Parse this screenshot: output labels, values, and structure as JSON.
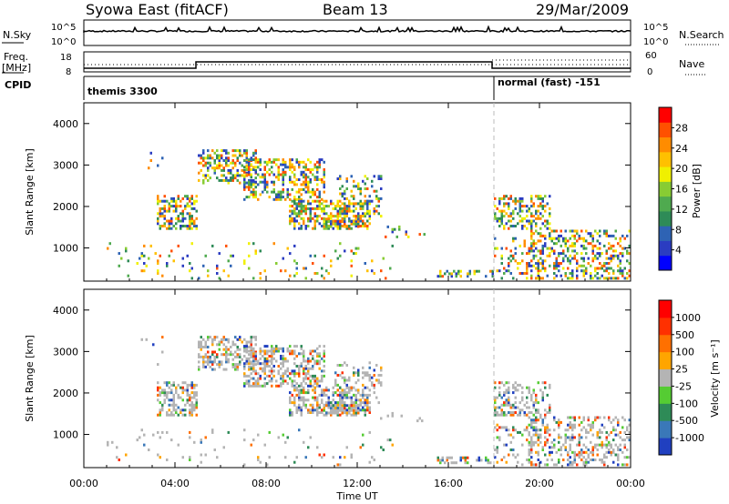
{
  "header": {
    "station": "Syowa East (fitACF)",
    "beam": "Beam 13",
    "date": "29/Mar/2009"
  },
  "noise_panel": {
    "left_label": "N.Sky",
    "right_label": "N.Search",
    "left_ticks": [
      "10^5",
      "10^0"
    ],
    "right_ticks": [
      "10^5",
      "10^0"
    ]
  },
  "freq_panel": {
    "left_label_1": "Freq.",
    "left_label_2": "[MHz]",
    "right_label": "Nave",
    "left_ticks": [
      "18",
      "8"
    ],
    "right_ticks": [
      "60",
      "0"
    ]
  },
  "cpid_panel": {
    "label": "CPID",
    "segments": [
      {
        "name": "themis 3300",
        "start_hour": 0,
        "end_hour": 18
      },
      {
        "name": "normal (fast) -151",
        "start_hour": 18,
        "end_hour": 24
      }
    ]
  },
  "chart_data": [
    {
      "type": "heatmap",
      "title": "",
      "ylabel": "Slant Range [km]",
      "ylim": [
        200,
        4500
      ],
      "yticks": [
        "1000",
        "2000",
        "3000",
        "4000"
      ],
      "colorbar": {
        "label": "Power [dB]",
        "ticks": [
          "28",
          "24",
          "20",
          "16",
          "12",
          "8",
          "4"
        ],
        "colors": [
          "#0000ff",
          "#2b3cc1",
          "#2e63b4",
          "#2e8b57",
          "#4faa4f",
          "#88cc33",
          "#f0f000",
          "#ffc000",
          "#ff8c00",
          "#ff5000",
          "#ff0000"
        ]
      }
    },
    {
      "type": "heatmap",
      "title": "",
      "ylabel": "Slant Range [km]",
      "ylim": [
        200,
        4500
      ],
      "yticks": [
        "1000",
        "2000",
        "3000",
        "4000"
      ],
      "colorbar": {
        "label": "Velocity [m s⁻¹]",
        "ticks": [
          "1000",
          "500",
          "100",
          "25",
          "-25",
          "-100",
          "-500",
          "-1000"
        ],
        "colors": [
          "#2040c0",
          "#3a78b8",
          "#2e8b57",
          "#55cc33",
          "#b4b4b4",
          "#ffa500",
          "#ff7000",
          "#ff3000",
          "#ff0000"
        ]
      }
    }
  ],
  "xaxis": {
    "label": "Time UT",
    "ticks": [
      "00:00",
      "04:00",
      "08:00",
      "12:00",
      "16:00",
      "20:00",
      "00:00"
    ]
  }
}
